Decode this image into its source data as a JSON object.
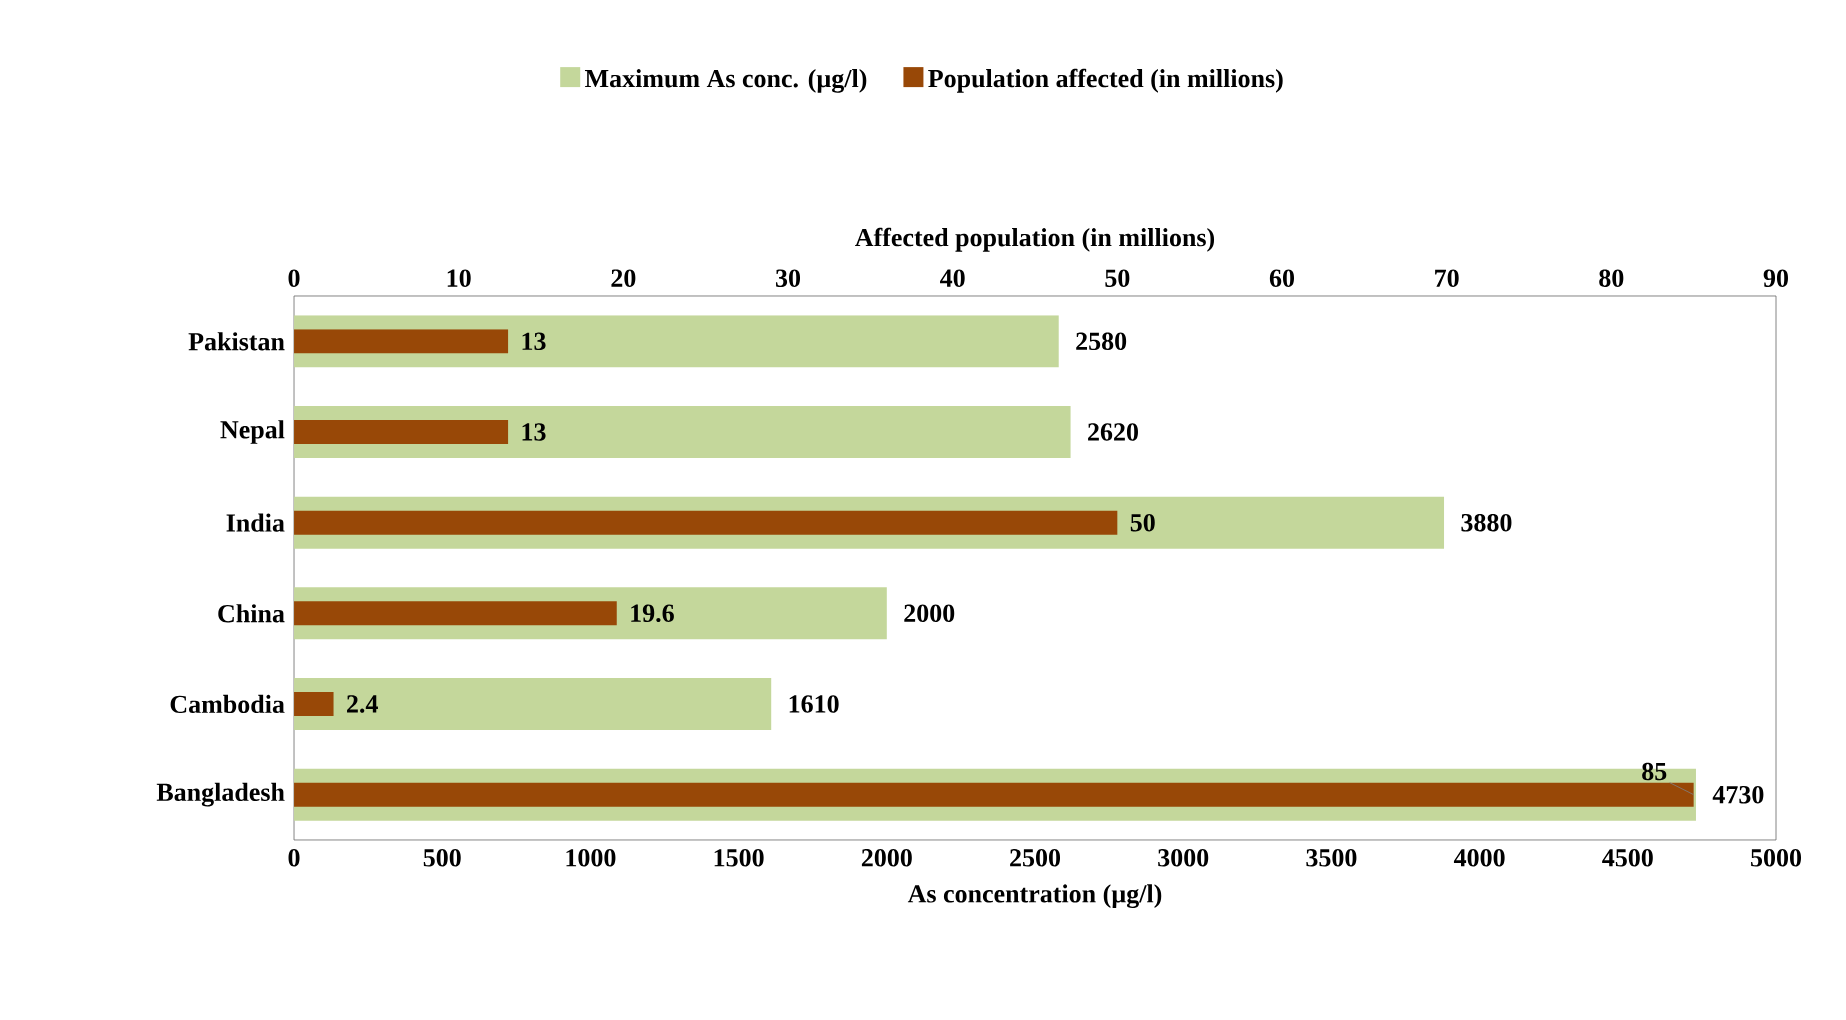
{
  "chart_data": {
    "type": "bar",
    "orientation": "horizontal",
    "categories": [
      "Pakistan",
      "Nepal",
      "India",
      "China",
      "Cambodia",
      "Bangladesh"
    ],
    "series": [
      {
        "name": "Maximum As conc. (µg/l)",
        "color": "#c4d79b",
        "values": [
          2580,
          2620,
          3880,
          2000,
          1610,
          4730
        ]
      },
      {
        "name": "Population affected (in millions)",
        "color": "#984807",
        "axis": "x2",
        "values": [
          13,
          13,
          50,
          19.6,
          2.4,
          85
        ]
      }
    ],
    "xlabel": "As concentration (µg/l)",
    "x2label": "Affected population (in millions)",
    "xlim": [
      0,
      5000
    ],
    "xticks": [
      0,
      500,
      1000,
      1500,
      2000,
      2500,
      3000,
      3500,
      4000,
      4500,
      5000
    ],
    "x2lim": [
      0,
      90
    ],
    "x2ticks": [
      0,
      10,
      20,
      30,
      40,
      50,
      60,
      70,
      80,
      90
    ],
    "data_labels": true,
    "legend": "top",
    "grid": false
  }
}
